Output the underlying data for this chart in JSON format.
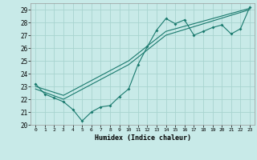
{
  "xlabel": "Humidex (Indice chaleur)",
  "background_color": "#c8eae8",
  "grid_color": "#a8d4d0",
  "line_color": "#1a7a6e",
  "xlim": [
    -0.5,
    23.5
  ],
  "ylim": [
    20,
    29.5
  ],
  "yticks": [
    20,
    21,
    22,
    23,
    24,
    25,
    26,
    27,
    28,
    29
  ],
  "xticks": [
    0,
    1,
    2,
    3,
    4,
    5,
    6,
    7,
    8,
    9,
    10,
    11,
    12,
    13,
    14,
    15,
    16,
    17,
    18,
    19,
    20,
    21,
    22,
    23
  ],
  "series1_x": [
    0,
    1,
    2,
    3,
    4,
    5,
    6,
    7,
    8,
    9,
    10,
    11,
    12,
    13,
    14,
    15,
    16,
    17,
    18,
    19,
    20,
    21,
    22,
    23
  ],
  "series1_y": [
    23.2,
    22.4,
    22.1,
    21.8,
    21.2,
    20.3,
    21.0,
    21.4,
    21.5,
    22.2,
    22.8,
    24.7,
    26.1,
    27.4,
    28.3,
    27.9,
    28.2,
    27.0,
    27.3,
    27.6,
    27.8,
    27.1,
    27.5,
    29.2
  ],
  "series2_x": [
    0,
    3,
    10,
    14,
    23
  ],
  "series2_y": [
    23.0,
    22.3,
    25.0,
    27.3,
    29.1
  ],
  "series3_x": [
    0,
    3,
    10,
    14,
    23
  ],
  "series3_y": [
    22.8,
    22.0,
    24.7,
    27.0,
    29.0
  ]
}
